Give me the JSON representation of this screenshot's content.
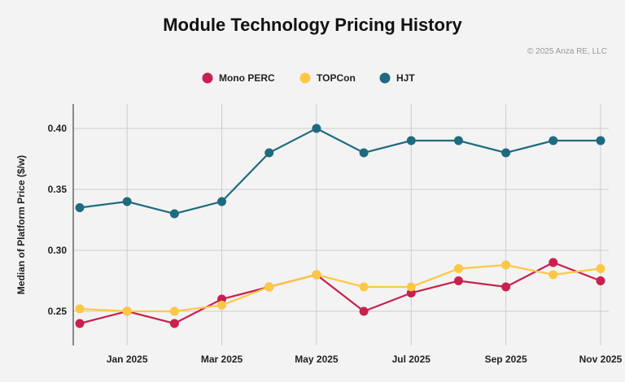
{
  "chart_data": {
    "type": "line",
    "title": "Module Technology Pricing History",
    "annotation": "© 2025 Anza RE, LLC",
    "xlabel": "",
    "ylabel": "Median of Platform Price ($/w)",
    "x": [
      "Dec 2024",
      "Jan 2025",
      "Feb 2025",
      "Mar 2025",
      "Apr 2025",
      "May 2025",
      "Jun 2025",
      "Jul 2025",
      "Aug 2025",
      "Sep 2025",
      "Oct 2025",
      "Nov 2025"
    ],
    "x_tick_labels": [
      "Jan 2025",
      "Mar 2025",
      "May 2025",
      "Jul 2025",
      "Sep 2025",
      "Nov 2025"
    ],
    "y_ticks": [
      "0.25",
      "0.30",
      "0.35",
      "0.40"
    ],
    "ylim": [
      0.222,
      0.42
    ],
    "grid": true,
    "legend_placement": "top",
    "series": [
      {
        "name": "Mono PERC",
        "color": "#c8204f",
        "values": [
          0.24,
          0.25,
          0.24,
          0.26,
          0.27,
          0.28,
          0.25,
          0.265,
          0.275,
          0.27,
          0.29,
          0.275
        ]
      },
      {
        "name": "TOPCon",
        "color": "#fcc844",
        "values": [
          0.252,
          0.25,
          0.25,
          0.255,
          0.27,
          0.28,
          0.27,
          0.27,
          0.285,
          0.288,
          0.28,
          0.285
        ]
      },
      {
        "name": "HJT",
        "color": "#1e6b80",
        "values": [
          0.335,
          0.34,
          0.33,
          0.34,
          0.38,
          0.4,
          0.38,
          0.39,
          0.39,
          0.38,
          0.39,
          0.39
        ]
      }
    ]
  }
}
